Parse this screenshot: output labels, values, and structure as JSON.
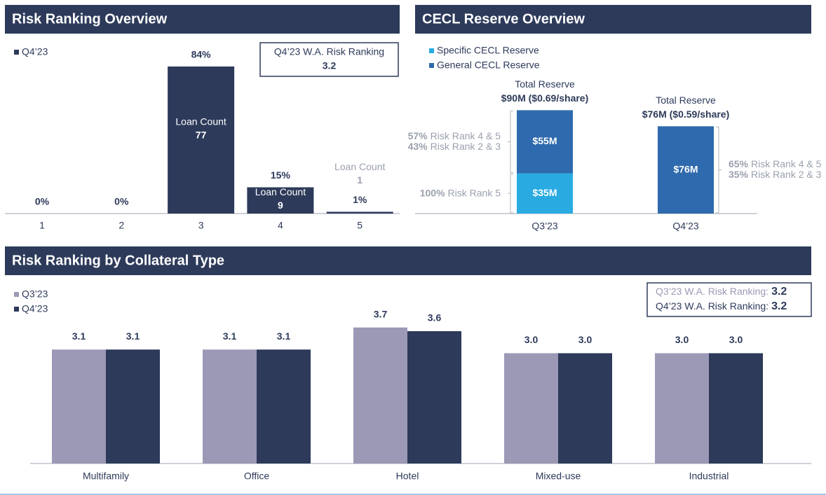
{
  "chart_data": [
    {
      "type": "bar",
      "title": "Risk Ranking Overview",
      "categories": [
        "1",
        "2",
        "3",
        "4",
        "5"
      ],
      "series": [
        {
          "name": "Q4’23",
          "color": "#2d3a5a",
          "values": [
            0,
            0,
            84,
            15,
            1
          ],
          "value_labels": [
            "0%",
            "0%",
            "84%",
            "15%",
            "1%"
          ]
        }
      ],
      "loan_count_label": "Loan Count",
      "loan_counts": [
        null,
        null,
        77,
        9,
        1
      ],
      "summary": [
        {
          "label": "Q4’23 W.A. Risk Ranking",
          "value": 3.2
        }
      ],
      "ylim": [
        0,
        100
      ]
    },
    {
      "type": "bar",
      "title": "CECL Reserve Overview",
      "stacked": true,
      "categories": [
        "Q3’23",
        "Q4’23"
      ],
      "series": [
        {
          "name": "Specific CECL Reserve",
          "color": "#29abe2",
          "values": [
            35,
            null
          ],
          "value_labels": [
            "$35M",
            null
          ],
          "notes": [
            [
              {
                "share": "100%",
                "label": "Risk Rank 5"
              }
            ],
            null
          ]
        },
        {
          "name": "General CECL Reserve",
          "color": "#2e6aad",
          "values": [
            55,
            76
          ],
          "value_labels": [
            "$55M",
            "$76M"
          ],
          "notes": [
            [
              {
                "share": "57%",
                "label": "Risk Rank 4 & 5"
              },
              {
                "share": "43%",
                "label": "Risk Rank 2 & 3"
              }
            ],
            [
              {
                "share": "65%",
                "label": "Risk Rank 4 & 5"
              },
              {
                "share": "35%",
                "label": "Risk Rank 2 & 3"
              }
            ]
          ]
        }
      ],
      "total_label": "Total Reserve",
      "total_labels": [
        "$90M ($0.69/share)",
        "$76M ($0.59/share)"
      ],
      "ylim": [
        0,
        100
      ]
    },
    {
      "type": "bar",
      "title": "Risk Ranking by Collateral Type",
      "categories": [
        "Multifamily",
        "Office",
        "Hotel",
        "Mixed-use",
        "Industrial"
      ],
      "series": [
        {
          "name": "Q3’23",
          "color": "#9b99b5",
          "values": [
            3.1,
            3.1,
            3.7,
            3.0,
            3.0
          ],
          "value_labels": [
            "3.1",
            "3.1",
            "3.7",
            "3.0",
            "3.0"
          ]
        },
        {
          "name": "Q4’23",
          "color": "#2d3a5a",
          "values": [
            3.1,
            3.1,
            3.6,
            3.0,
            3.0
          ],
          "value_labels": [
            "3.1",
            "3.1",
            "3.6",
            "3.0",
            "3.0"
          ]
        }
      ],
      "summary": [
        {
          "label": "Q3’23 W.A. Risk Ranking:",
          "value": 3.2
        },
        {
          "label": "Q4’23 W.A. Risk Ranking:",
          "value": 3.2
        }
      ],
      "ylim": [
        0,
        4
      ]
    }
  ]
}
